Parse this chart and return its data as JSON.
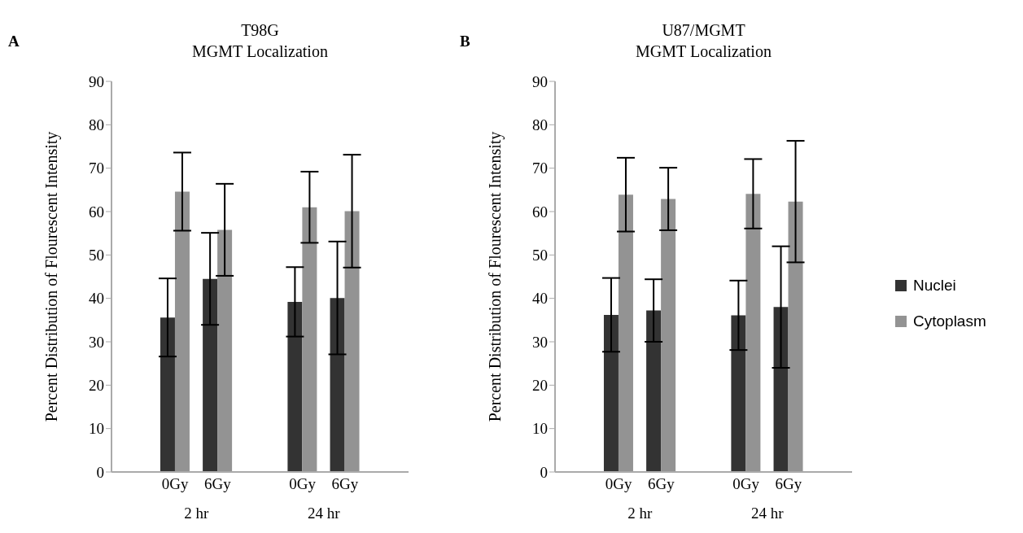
{
  "chart_data": [
    {
      "type": "bar",
      "title": "T98G\nMGMT Localization",
      "ylabel": "Percent Distribution of Flourescent Intensity",
      "annotations": [
        "A",
        "2 hr",
        "24 hr"
      ],
      "categories": [
        null,
        "0Gy",
        "6Gy",
        null,
        "0Gy",
        "6Gy",
        null
      ],
      "series": [
        {
          "color": "#333333",
          "values": [
            null,
            35.6,
            44.5,
            null,
            39.2,
            40.1,
            null
          ],
          "errors": [
            null,
            9,
            10.6,
            null,
            8,
            13,
            null
          ]
        },
        {
          "color": "#939393",
          "values": [
            null,
            64.6,
            55.8,
            null,
            61,
            60.1,
            null
          ],
          "errors": [
            null,
            9,
            10.6,
            null,
            8.2,
            13,
            null
          ]
        }
      ],
      "ylim": [
        0,
        90
      ],
      "yticks": [
        0,
        10,
        20,
        30,
        40,
        50,
        60,
        70,
        80,
        90
      ],
      "grid": false,
      "legend": false
    },
    {
      "type": "bar",
      "title": "U87/MGMT\nMGMT Localization",
      "ylabel": "Percent Distribution of Flourescent Intensity",
      "annotations": [
        "B",
        "2 hr",
        "24 hr"
      ],
      "categories": [
        null,
        "0Gy",
        "6Gy",
        null,
        "0Gy",
        "6Gy",
        null
      ],
      "series": [
        {
          "name": "Nuclei",
          "color": "#333333",
          "values": [
            null,
            36.2,
            37.2,
            null,
            36.1,
            38,
            null
          ],
          "errors": [
            null,
            8.5,
            7.2,
            null,
            8,
            14,
            null
          ]
        },
        {
          "name": "Cytoplasm",
          "color": "#939393",
          "values": [
            null,
            63.9,
            62.9,
            null,
            64.1,
            62.3,
            null
          ],
          "errors": [
            null,
            8.5,
            7.2,
            null,
            8,
            14,
            null
          ]
        }
      ],
      "ylim": [
        0,
        90
      ],
      "yticks": [
        0,
        10,
        20,
        30,
        40,
        50,
        60,
        70,
        80,
        90
      ],
      "grid": false,
      "legend": "right"
    }
  ]
}
